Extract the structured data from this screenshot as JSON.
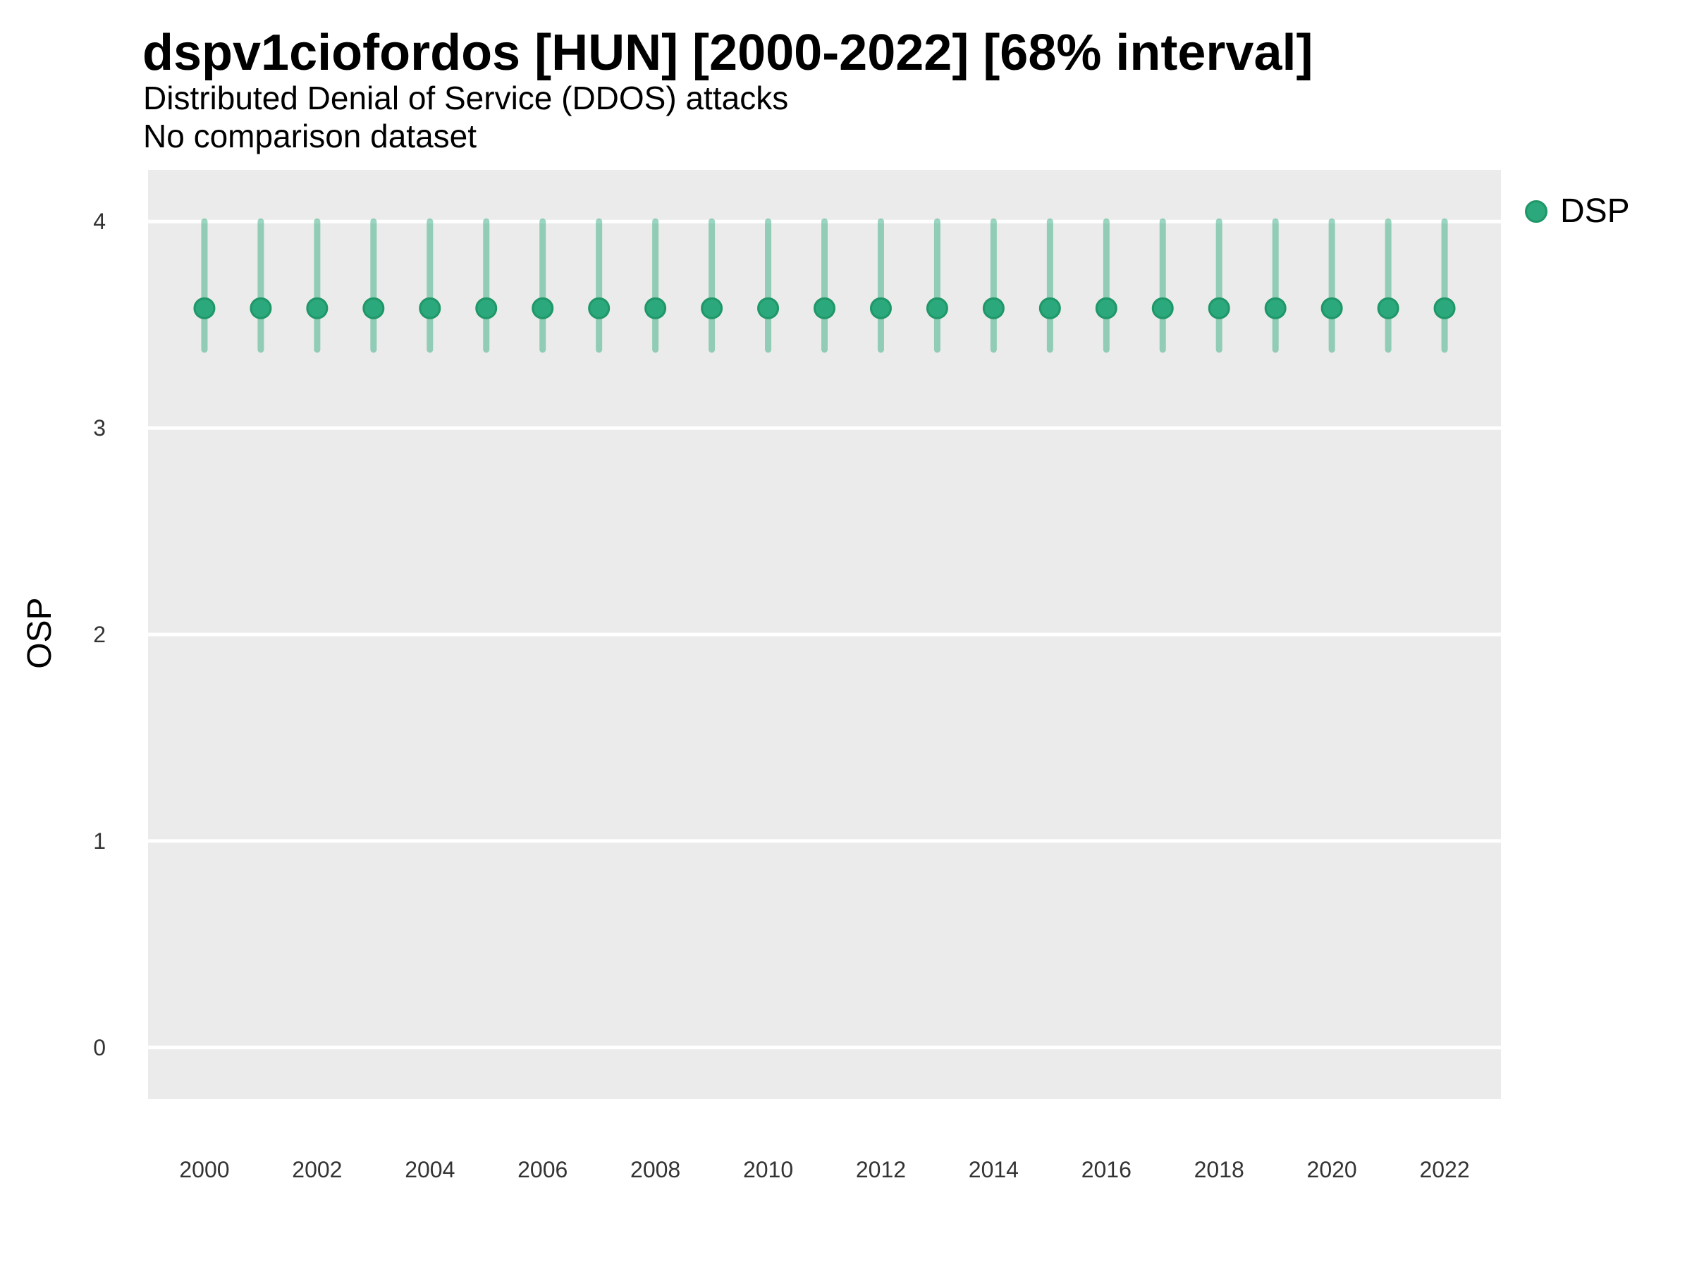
{
  "header": {
    "title": "dspv1ciofordos [HUN] [2000-2022] [68% interval]",
    "subtitle": "Distributed Denial of Service (DDOS) attacks",
    "note": "No comparison dataset"
  },
  "legend": {
    "position": "right",
    "items": [
      {
        "label": "DSP",
        "color": "#2BA87C"
      }
    ]
  },
  "colors": {
    "point": "#2BA87C",
    "point_stroke": "#1F9768",
    "errorbar": "rgba(45,169,124,0.48)",
    "panel": "#EBEBEB",
    "gridline": "#FFFFFF",
    "tick_text": "#333333"
  },
  "chart_data": {
    "type": "scatter",
    "title": "dspv1ciofordos [HUN] [2000-2022] [68% interval]",
    "subtitle": "Distributed Denial of Service (DDOS) attacks",
    "note": "No comparison dataset",
    "xlabel": "",
    "ylabel": "OSP",
    "xlim": [
      1999,
      2023
    ],
    "ylim": [
      -0.25,
      4.25
    ],
    "x_ticks": [
      2000,
      2002,
      2004,
      2006,
      2008,
      2010,
      2012,
      2014,
      2016,
      2018,
      2020,
      2022
    ],
    "y_ticks": [
      0,
      1,
      2,
      3,
      4
    ],
    "grid": "major horizontal white gridlines on grey panel, no minor gridlines",
    "legend_position": "right",
    "interval": "68%",
    "series": [
      {
        "name": "DSP",
        "x": [
          2000,
          2001,
          2002,
          2003,
          2004,
          2005,
          2006,
          2007,
          2008,
          2009,
          2010,
          2011,
          2012,
          2013,
          2014,
          2015,
          2016,
          2017,
          2018,
          2019,
          2020,
          2021,
          2022
        ],
        "y": [
          3.58,
          3.58,
          3.58,
          3.58,
          3.58,
          3.58,
          3.58,
          3.58,
          3.58,
          3.58,
          3.58,
          3.58,
          3.58,
          3.58,
          3.58,
          3.58,
          3.58,
          3.58,
          3.58,
          3.58,
          3.58,
          3.58,
          3.58
        ],
        "y_low": [
          3.38,
          3.38,
          3.38,
          3.38,
          3.38,
          3.38,
          3.38,
          3.38,
          3.38,
          3.38,
          3.38,
          3.38,
          3.38,
          3.38,
          3.38,
          3.38,
          3.38,
          3.38,
          3.38,
          3.38,
          3.38,
          3.38,
          3.38
        ],
        "y_high": [
          4.0,
          4.0,
          4.0,
          4.0,
          4.0,
          4.0,
          4.0,
          4.0,
          4.0,
          4.0,
          4.0,
          4.0,
          4.0,
          4.0,
          4.0,
          4.0,
          4.0,
          4.0,
          4.0,
          4.0,
          4.0,
          4.0,
          4.0
        ]
      }
    ]
  }
}
